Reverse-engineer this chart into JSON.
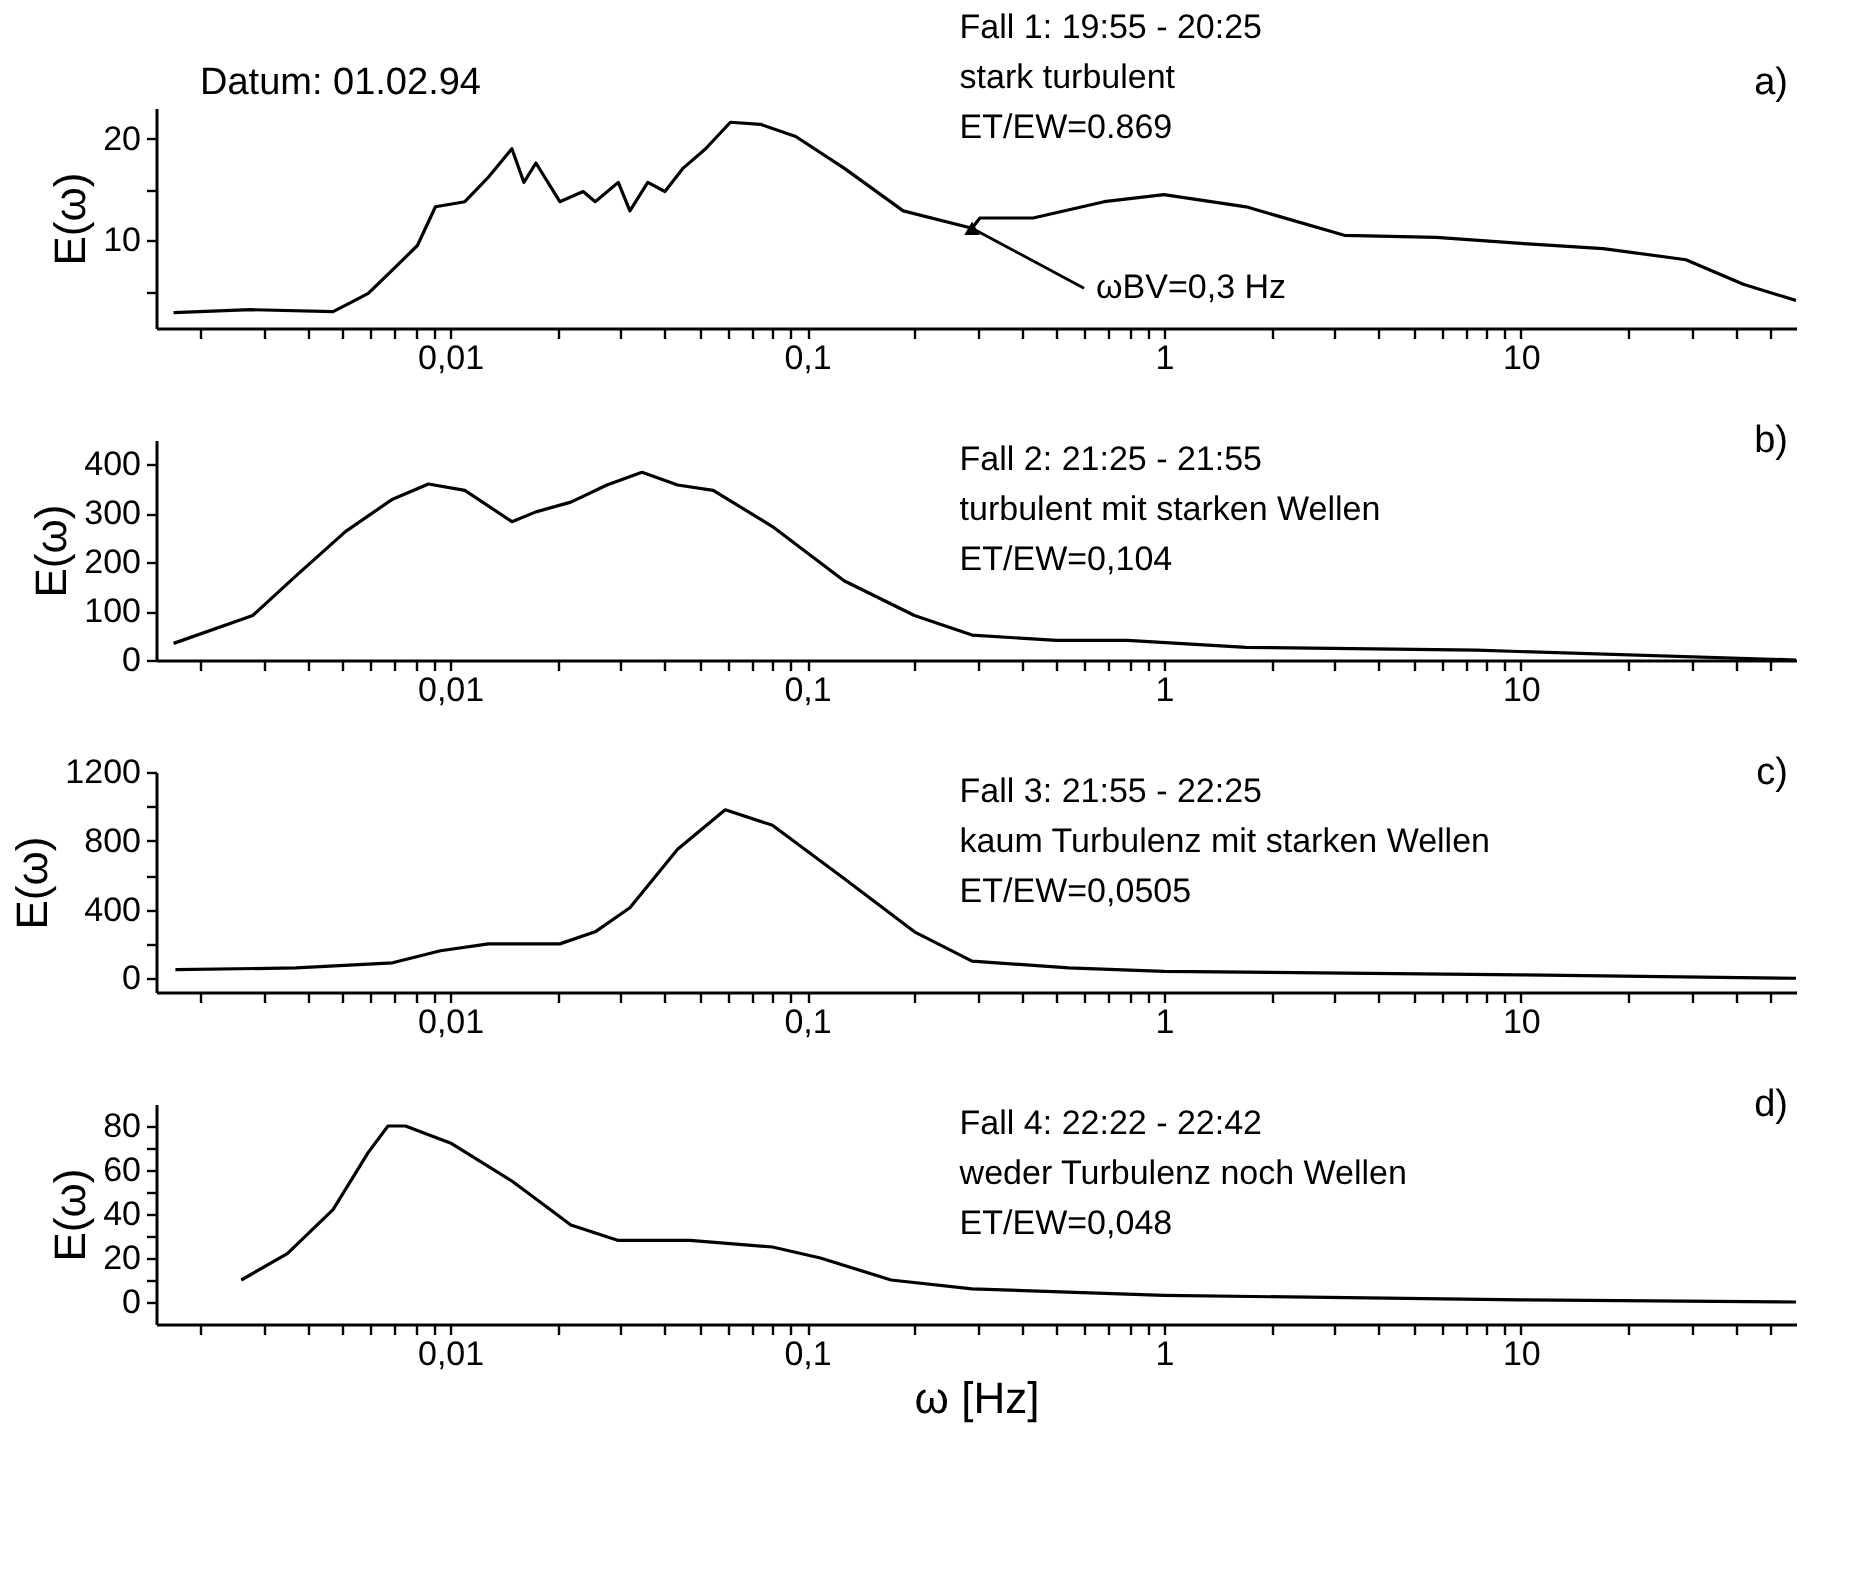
{
  "chart_data": [
    {
      "type": "line",
      "log": "x",
      "xlim": [
        0.0015,
        59
      ],
      "ylim": [
        1.4,
        23
      ],
      "ylabel": "E(ω)",
      "xticks": [
        {
          "value": 0.002,
          "label": null
        },
        {
          "value": 0.003,
          "label": null
        },
        {
          "value": 0.004,
          "label": null
        },
        {
          "value": 0.005,
          "label": null
        },
        {
          "value": 0.006,
          "label": null
        },
        {
          "value": 0.007,
          "label": null
        },
        {
          "value": 0.008,
          "label": null
        },
        {
          "value": 0.009,
          "label": null
        },
        {
          "value": 0.01,
          "label": "0,01"
        },
        {
          "value": 0.02,
          "label": null
        },
        {
          "value": 0.03,
          "label": null
        },
        {
          "value": 0.04,
          "label": null
        },
        {
          "value": 0.05,
          "label": null
        },
        {
          "value": 0.06,
          "label": null
        },
        {
          "value": 0.07,
          "label": null
        },
        {
          "value": 0.08,
          "label": null
        },
        {
          "value": 0.09,
          "label": null
        },
        {
          "value": 0.1,
          "label": "0,1"
        },
        {
          "value": 0.2,
          "label": null
        },
        {
          "value": 0.3,
          "label": null
        },
        {
          "value": 0.4,
          "label": null
        },
        {
          "value": 0.5,
          "label": null
        },
        {
          "value": 0.6,
          "label": null
        },
        {
          "value": 0.7,
          "label": null
        },
        {
          "value": 0.8,
          "label": null
        },
        {
          "value": 0.9,
          "label": null
        },
        1,
        {
          "value": 2,
          "label": null
        },
        {
          "value": 3,
          "label": null
        },
        {
          "value": 4,
          "label": null
        },
        {
          "value": 5,
          "label": null
        },
        {
          "value": 6,
          "label": null
        },
        {
          "value": 7,
          "label": null
        },
        {
          "value": 8,
          "label": null
        },
        {
          "value": 9,
          "label": null
        },
        10,
        {
          "value": 20,
          "label": null
        },
        {
          "value": 30,
          "label": null
        },
        {
          "value": 40,
          "label": null
        },
        {
          "value": 50,
          "label": null
        }
      ],
      "yticks": [
        {
          "value": 5,
          "label": null
        },
        10,
        {
          "value": 15,
          "label": null
        },
        20
      ],
      "x": [
        0.00168,
        0.00276,
        0.0047,
        0.0052,
        0.0059,
        0.0069,
        0.0081,
        0.0091,
        0.011,
        0.0128,
        0.0149,
        0.0161,
        0.0174,
        0.0203,
        0.0236,
        0.0255,
        0.0296,
        0.0319,
        0.0358,
        0.04,
        0.045,
        0.052,
        0.061,
        0.074,
        0.093,
        0.127,
        0.186,
        0.29,
        0.305,
        0.43,
        0.68,
        1,
        1.7,
        3.2,
        5.8,
        10,
        17,
        29,
        42,
        59
      ],
      "series": [
        {
          "color": "#000000",
          "values": [
            2.9,
            3.2,
            3.0,
            3.8,
            4.8,
            7.1,
            9.5,
            13.3,
            13.8,
            16.2,
            19.0,
            15.7,
            17.6,
            13.8,
            14.8,
            13.8,
            15.7,
            12.9,
            15.7,
            14.8,
            17.1,
            19.0,
            21.6,
            21.4,
            20.2,
            17.1,
            12.9,
            11.2,
            12.2,
            12.2,
            13.8,
            14.5,
            13.3,
            10.5,
            10.3,
            9.7,
            9.2,
            8.1,
            5.7,
            4.1
          ]
        }
      ],
      "annotations": [
        "Datum: 01.02.94",
        "Fall 1: 19:55 - 20:25",
        "stark turbulent",
        "ET/EW=0.869",
        "a)",
        {
          "text": "ωBV=0,3 Hz",
          "x": 0.29,
          "y": 11.2
        }
      ]
    },
    {
      "type": "line",
      "log": "x",
      "xlim": [
        0.0015,
        59
      ],
      "ylim": [
        0,
        450
      ],
      "ylabel": "E(ω)",
      "xticks": [
        {
          "value": 0.002,
          "label": null
        },
        {
          "value": 0.003,
          "label": null
        },
        {
          "value": 0.004,
          "label": null
        },
        {
          "value": 0.005,
          "label": null
        },
        {
          "value": 0.006,
          "label": null
        },
        {
          "value": 0.007,
          "label": null
        },
        {
          "value": 0.008,
          "label": null
        },
        {
          "value": 0.009,
          "label": null
        },
        {
          "value": 0.01,
          "label": "0,01"
        },
        {
          "value": 0.02,
          "label": null
        },
        {
          "value": 0.03,
          "label": null
        },
        {
          "value": 0.04,
          "label": null
        },
        {
          "value": 0.05,
          "label": null
        },
        {
          "value": 0.06,
          "label": null
        },
        {
          "value": 0.07,
          "label": null
        },
        {
          "value": 0.08,
          "label": null
        },
        {
          "value": 0.09,
          "label": null
        },
        {
          "value": 0.1,
          "label": "0,1"
        },
        {
          "value": 0.2,
          "label": null
        },
        {
          "value": 0.3,
          "label": null
        },
        {
          "value": 0.4,
          "label": null
        },
        {
          "value": 0.5,
          "label": null
        },
        {
          "value": 0.6,
          "label": null
        },
        {
          "value": 0.7,
          "label": null
        },
        {
          "value": 0.8,
          "label": null
        },
        {
          "value": 0.9,
          "label": null
        },
        1,
        {
          "value": 2,
          "label": null
        },
        {
          "value": 3,
          "label": null
        },
        {
          "value": 4,
          "label": null
        },
        {
          "value": 5,
          "label": null
        },
        {
          "value": 6,
          "label": null
        },
        {
          "value": 7,
          "label": null
        },
        {
          "value": 8,
          "label": null
        },
        {
          "value": 9,
          "label": null
        },
        10,
        {
          "value": 20,
          "label": null
        },
        {
          "value": 30,
          "label": null
        },
        {
          "value": 40,
          "label": null
        },
        {
          "value": 50,
          "label": null
        }
      ],
      "yticks": [
        0,
        100,
        200,
        300,
        400
      ],
      "x": [
        0.00168,
        0.0028,
        0.0037,
        0.0051,
        0.0069,
        0.0087,
        0.011,
        0.0149,
        0.0174,
        0.0218,
        0.0275,
        0.0345,
        0.0434,
        0.0546,
        0.08,
        0.127,
        0.2,
        0.29,
        0.5,
        0.79,
        1.7,
        7.5,
        59
      ],
      "series": [
        {
          "color": "#000000",
          "values": [
            34,
            91,
            172,
            263,
            329,
            360,
            347,
            283,
            303,
            323,
            358,
            384,
            358,
            347,
            273,
            162,
            91,
            51,
            40,
            40,
            26,
            20,
            0
          ]
        }
      ],
      "annotations": [
        "Fall 2: 21:25 - 21:55",
        "turbulent mit starken Wellen",
        "ET/EW=0,104",
        "b)"
      ]
    },
    {
      "type": "line",
      "log": "x",
      "xlim": [
        0.0015,
        59
      ],
      "ylim": [
        -80,
        1200
      ],
      "ylabel": "E(ω)",
      "xticks": [
        {
          "value": 0.002,
          "label": null
        },
        {
          "value": 0.003,
          "label": null
        },
        {
          "value": 0.004,
          "label": null
        },
        {
          "value": 0.005,
          "label": null
        },
        {
          "value": 0.006,
          "label": null
        },
        {
          "value": 0.007,
          "label": null
        },
        {
          "value": 0.008,
          "label": null
        },
        {
          "value": 0.009,
          "label": null
        },
        {
          "value": 0.01,
          "label": "0,01"
        },
        {
          "value": 0.02,
          "label": null
        },
        {
          "value": 0.03,
          "label": null
        },
        {
          "value": 0.04,
          "label": null
        },
        {
          "value": 0.05,
          "label": null
        },
        {
          "value": 0.06,
          "label": null
        },
        {
          "value": 0.07,
          "label": null
        },
        {
          "value": 0.08,
          "label": null
        },
        {
          "value": 0.09,
          "label": null
        },
        {
          "value": 0.1,
          "label": "0,1"
        },
        {
          "value": 0.2,
          "label": null
        },
        {
          "value": 0.3,
          "label": null
        },
        {
          "value": 0.4,
          "label": null
        },
        {
          "value": 0.5,
          "label": null
        },
        {
          "value": 0.6,
          "label": null
        },
        {
          "value": 0.7,
          "label": null
        },
        {
          "value": 0.8,
          "label": null
        },
        {
          "value": 0.9,
          "label": null
        },
        1,
        {
          "value": 2,
          "label": null
        },
        {
          "value": 3,
          "label": null
        },
        {
          "value": 4,
          "label": null
        },
        {
          "value": 5,
          "label": null
        },
        {
          "value": 6,
          "label": null
        },
        {
          "value": 7,
          "label": null
        },
        {
          "value": 8,
          "label": null
        },
        {
          "value": 9,
          "label": null
        },
        10,
        {
          "value": 20,
          "label": null
        },
        {
          "value": 30,
          "label": null
        },
        {
          "value": 40,
          "label": null
        },
        {
          "value": 50,
          "label": null
        }
      ],
      "yticks": [
        0,
        {
          "value": 200,
          "label": null
        },
        400,
        {
          "value": 600,
          "label": null
        },
        800,
        {
          "value": 1000,
          "label": null
        },
        1200
      ],
      "x": [
        0.0017,
        0.0037,
        0.0069,
        0.0094,
        0.0128,
        0.0203,
        0.0255,
        0.0319,
        0.0434,
        0.059,
        0.08,
        0.127,
        0.2,
        0.29,
        0.54,
        1,
        10,
        59
      ],
      "series": [
        {
          "color": "#000000",
          "values": [
            50,
            60,
            90,
            160,
            200,
            200,
            270,
            410,
            750,
            980,
            890,
            580,
            270,
            100,
            60,
            40,
            20,
            0
          ]
        }
      ],
      "annotations": [
        "Fall 3: 21:55 - 22:25",
        "kaum Turbulenz mit starken Wellen",
        "ET/EW=0,0505",
        "c)"
      ]
    },
    {
      "type": "line",
      "log": "x",
      "xlim": [
        0.0015,
        59
      ],
      "ylim": [
        -10,
        90
      ],
      "ylabel": "E(ω)",
      "xlabel": "ω [Hz]",
      "xticks": [
        {
          "value": 0.002,
          "label": null
        },
        {
          "value": 0.003,
          "label": null
        },
        {
          "value": 0.004,
          "label": null
        },
        {
          "value": 0.005,
          "label": null
        },
        {
          "value": 0.006,
          "label": null
        },
        {
          "value": 0.007,
          "label": null
        },
        {
          "value": 0.008,
          "label": null
        },
        {
          "value": 0.009,
          "label": null
        },
        {
          "value": 0.01,
          "label": "0,01"
        },
        {
          "value": 0.02,
          "label": null
        },
        {
          "value": 0.03,
          "label": null
        },
        {
          "value": 0.04,
          "label": null
        },
        {
          "value": 0.05,
          "label": null
        },
        {
          "value": 0.06,
          "label": null
        },
        {
          "value": 0.07,
          "label": null
        },
        {
          "value": 0.08,
          "label": null
        },
        {
          "value": 0.09,
          "label": null
        },
        {
          "value": 0.1,
          "label": "0,1"
        },
        {
          "value": 0.2,
          "label": null
        },
        {
          "value": 0.3,
          "label": null
        },
        {
          "value": 0.4,
          "label": null
        },
        {
          "value": 0.5,
          "label": null
        },
        {
          "value": 0.6,
          "label": null
        },
        {
          "value": 0.7,
          "label": null
        },
        {
          "value": 0.8,
          "label": null
        },
        {
          "value": 0.9,
          "label": null
        },
        1,
        {
          "value": 2,
          "label": null
        },
        {
          "value": 3,
          "label": null
        },
        {
          "value": 4,
          "label": null
        },
        {
          "value": 5,
          "label": null
        },
        {
          "value": 6,
          "label": null
        },
        {
          "value": 7,
          "label": null
        },
        {
          "value": 8,
          "label": null
        },
        {
          "value": 9,
          "label": null
        },
        10,
        {
          "value": 20,
          "label": null
        },
        {
          "value": 30,
          "label": null
        },
        {
          "value": 40,
          "label": null
        },
        {
          "value": 50,
          "label": null
        }
      ],
      "yticks": [
        0,
        {
          "value": 10,
          "label": null
        },
        20,
        {
          "value": 30,
          "label": null
        },
        40,
        {
          "value": 50,
          "label": null
        },
        60,
        {
          "value": 70,
          "label": null
        },
        80
      ],
      "x": [
        0.0026,
        0.0035,
        0.0047,
        0.0059,
        0.0067,
        0.0075,
        0.0101,
        0.0149,
        0.0218,
        0.0296,
        0.047,
        0.08,
        0.109,
        0.172,
        0.29,
        1,
        10,
        59
      ],
      "series": [
        {
          "color": "#000000",
          "values": [
            10,
            22,
            42,
            68,
            80,
            80,
            72,
            55,
            35,
            28,
            28,
            25,
            20,
            10,
            6,
            3,
            1,
            0
          ]
        }
      ],
      "annotations": [
        "Fall 4: 22:22 - 22:42",
        "weder Turbulenz noch Wellen",
        "ET/EW=0,048",
        "d)"
      ]
    }
  ]
}
